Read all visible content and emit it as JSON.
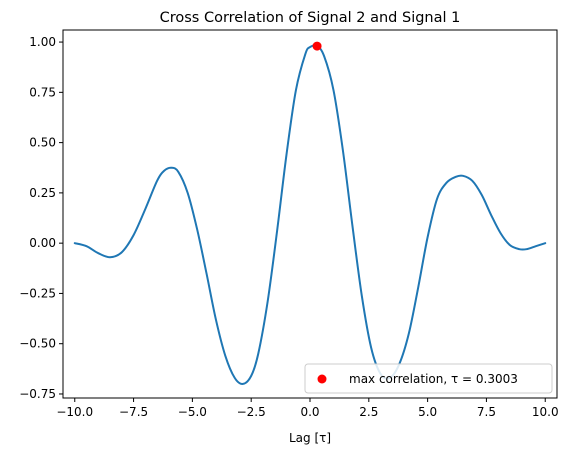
{
  "chart_data": {
    "type": "line",
    "title": "Cross Correlation of Signal 2 and Signal 1",
    "xlabel": "Lag [τ]",
    "ylabel": "",
    "xlim": [
      -10.5,
      10.5
    ],
    "ylim": [
      -0.77,
      1.06
    ],
    "x_ticks": [
      -10.0,
      -7.5,
      -5.0,
      -2.5,
      0.0,
      2.5,
      5.0,
      7.5,
      10.0
    ],
    "x_tick_labels": [
      "−10.0",
      "−7.5",
      "−5.0",
      "−2.5",
      "0.0",
      "2.5",
      "5.0",
      "7.5",
      "10.0"
    ],
    "y_ticks": [
      -0.75,
      -0.5,
      -0.25,
      0.0,
      0.25,
      0.5,
      0.75,
      1.0
    ],
    "y_tick_labels": [
      "−0.75",
      "−0.50",
      "−0.25",
      "0.00",
      "0.25",
      "0.50",
      "0.75",
      "1.00"
    ],
    "grid": false,
    "series": [
      {
        "color": "#1f77b4",
        "points": [
          [
            -10.0,
            0.0
          ],
          [
            -9.5,
            -0.015
          ],
          [
            -9.0,
            -0.05
          ],
          [
            -8.5,
            -0.07
          ],
          [
            -8.0,
            -0.045
          ],
          [
            -7.5,
            0.04
          ],
          [
            -7.0,
            0.17
          ],
          [
            -6.5,
            0.31
          ],
          [
            -6.2,
            0.36
          ],
          [
            -5.9,
            0.375
          ],
          [
            -5.6,
            0.355
          ],
          [
            -5.2,
            0.25
          ],
          [
            -4.8,
            0.07
          ],
          [
            -4.4,
            -0.15
          ],
          [
            -4.0,
            -0.38
          ],
          [
            -3.6,
            -0.56
          ],
          [
            -3.2,
            -0.67
          ],
          [
            -2.85,
            -0.7
          ],
          [
            -2.5,
            -0.66
          ],
          [
            -2.2,
            -0.55
          ],
          [
            -1.8,
            -0.29
          ],
          [
            -1.4,
            0.06
          ],
          [
            -1.0,
            0.44
          ],
          [
            -0.6,
            0.76
          ],
          [
            -0.2,
            0.94
          ],
          [
            0.0,
            0.975
          ],
          [
            0.3003,
            0.98
          ],
          [
            0.6,
            0.93
          ],
          [
            1.0,
            0.76
          ],
          [
            1.4,
            0.46
          ],
          [
            1.8,
            0.09
          ],
          [
            2.2,
            -0.26
          ],
          [
            2.6,
            -0.52
          ],
          [
            3.0,
            -0.65
          ],
          [
            3.4,
            -0.67
          ],
          [
            3.8,
            -0.6
          ],
          [
            4.2,
            -0.45
          ],
          [
            4.6,
            -0.22
          ],
          [
            5.0,
            0.03
          ],
          [
            5.4,
            0.22
          ],
          [
            5.8,
            0.3
          ],
          [
            6.2,
            0.33
          ],
          [
            6.5,
            0.335
          ],
          [
            6.9,
            0.31
          ],
          [
            7.3,
            0.24
          ],
          [
            7.7,
            0.14
          ],
          [
            8.1,
            0.05
          ],
          [
            8.5,
            -0.01
          ],
          [
            8.9,
            -0.03
          ],
          [
            9.2,
            -0.03
          ],
          [
            9.6,
            -0.015
          ],
          [
            10.0,
            0.0
          ]
        ]
      }
    ],
    "marker": {
      "x": 0.3003,
      "y": 0.98,
      "color": "#ff0000"
    },
    "legend": {
      "position": "lower-right",
      "label": "max correlation, τ = 0.3003"
    }
  }
}
